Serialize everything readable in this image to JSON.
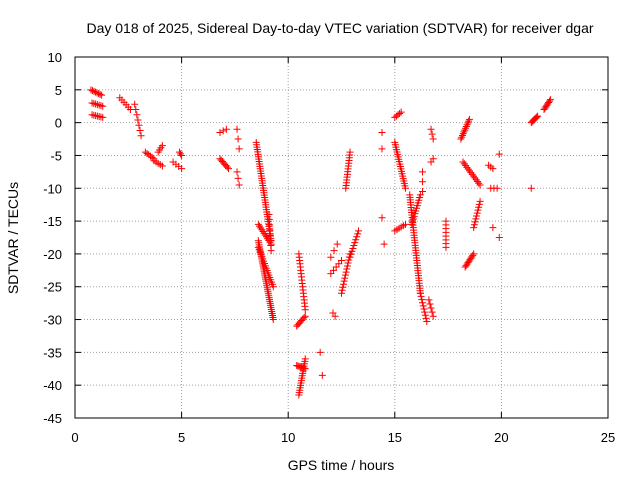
{
  "chart_data": {
    "type": "scatter",
    "title": "Day 018 of 2025, Sidereal Day-to-day VTEC variation (SDTVAR) for receiver dgar",
    "xlabel": "GPS time / hours",
    "ylabel": "SDTVAR / TECUs",
    "xlim": [
      0,
      25
    ],
    "ylim": [
      -45,
      10
    ],
    "xticks": [
      0,
      5,
      10,
      15,
      20,
      25
    ],
    "yticks": [
      10,
      5,
      0,
      -5,
      -10,
      -15,
      -20,
      -25,
      -30,
      -35,
      -40,
      -45
    ],
    "grid": true,
    "marker": "+",
    "marker_color": "#ff0000",
    "tracks": [
      {
        "from": [
          0.75,
          5.0
        ],
        "to": [
          1.25,
          4.2
        ],
        "n": 8
      },
      {
        "from": [
          0.8,
          3.0
        ],
        "to": [
          1.3,
          2.5
        ],
        "n": 7
      },
      {
        "from": [
          0.8,
          1.2
        ],
        "to": [
          1.3,
          0.8
        ],
        "n": 7
      },
      {
        "from": [
          2.1,
          3.8
        ],
        "to": [
          2.6,
          2.0
        ],
        "n": 6
      },
      {
        "from": [
          2.8,
          2.8
        ],
        "to": [
          3.1,
          -2.0
        ],
        "n": 7
      },
      {
        "from": [
          3.3,
          -4.5
        ],
        "to": [
          3.7,
          -5.5
        ],
        "n": 6
      },
      {
        "from": [
          3.7,
          -5.8
        ],
        "to": [
          4.1,
          -6.6
        ],
        "n": 5
      },
      {
        "from": [
          3.9,
          -4.5
        ],
        "to": [
          4.1,
          -3.5
        ],
        "n": 4
      },
      {
        "from": [
          4.6,
          -6.0
        ],
        "to": [
          5.0,
          -7.0
        ],
        "n": 4
      },
      {
        "from": [
          4.9,
          -4.5
        ],
        "to": [
          5.0,
          -5.0
        ],
        "n": 3
      },
      {
        "from": [
          6.8,
          -5.5
        ],
        "to": [
          7.2,
          -7.0
        ],
        "n": 8
      },
      {
        "from": [
          6.8,
          -1.5
        ],
        "to": [
          7.1,
          -1.0
        ],
        "n": 3
      },
      {
        "from": [
          7.6,
          -1.0
        ],
        "to": [
          7.7,
          -4.0
        ],
        "n": 3
      },
      {
        "from": [
          7.6,
          -7.5
        ],
        "to": [
          7.7,
          -9.5
        ],
        "n": 3
      },
      {
        "from": [
          8.5,
          -3.0
        ],
        "to": [
          9.2,
          -18.0
        ],
        "n": 42
      },
      {
        "from": [
          8.6,
          -15.5
        ],
        "to": [
          9.2,
          -18.5
        ],
        "n": 12
      },
      {
        "from": [
          8.6,
          -18.0
        ],
        "to": [
          9.3,
          -30.0
        ],
        "n": 40
      },
      {
        "from": [
          8.6,
          -19.0
        ],
        "to": [
          9.3,
          -25.0
        ],
        "n": 18
      },
      {
        "from": [
          9.1,
          -14.0
        ],
        "to": [
          9.2,
          -19.5
        ],
        "n": 8
      },
      {
        "from": [
          10.5,
          -20.0
        ],
        "to": [
          10.8,
          -28.5
        ],
        "n": 18
      },
      {
        "from": [
          10.4,
          -31.0
        ],
        "to": [
          10.8,
          -29.5
        ],
        "n": 8
      },
      {
        "from": [
          10.4,
          -37.0
        ],
        "to": [
          10.8,
          -37.5
        ],
        "n": 8
      },
      {
        "from": [
          10.5,
          -41.5
        ],
        "to": [
          10.8,
          -36.0
        ],
        "n": 16
      },
      {
        "from": [
          11.5,
          -35.0
        ],
        "to": [
          11.6,
          -38.5
        ],
        "n": 2
      },
      {
        "from": [
          12.0,
          -20.5
        ],
        "to": [
          12.3,
          -18.5
        ],
        "n": 3
      },
      {
        "from": [
          12.0,
          -23.0
        ],
        "to": [
          12.5,
          -21.0
        ],
        "n": 5
      },
      {
        "from": [
          12.1,
          -29.0
        ],
        "to": [
          12.2,
          -29.5
        ],
        "n": 2
      },
      {
        "from": [
          12.5,
          -26.0
        ],
        "to": [
          12.9,
          -20.0
        ],
        "n": 14
      },
      {
        "from": [
          12.7,
          -10.0
        ],
        "to": [
          12.9,
          -4.5
        ],
        "n": 14
      },
      {
        "from": [
          12.9,
          -20.5
        ],
        "to": [
          13.3,
          -16.5
        ],
        "n": 10
      },
      {
        "from": [
          14.4,
          -1.5
        ],
        "to": [
          14.4,
          -4.0
        ],
        "n": 2
      },
      {
        "from": [
          14.4,
          -14.5
        ],
        "to": [
          14.5,
          -18.5
        ],
        "n": 2
      },
      {
        "from": [
          15.0,
          0.8
        ],
        "to": [
          15.3,
          1.6
        ],
        "n": 5
      },
      {
        "from": [
          15.0,
          -3.0
        ],
        "to": [
          15.5,
          -10.0
        ],
        "n": 20
      },
      {
        "from": [
          15.0,
          -16.5
        ],
        "to": [
          15.5,
          -15.5
        ],
        "n": 6
      },
      {
        "from": [
          15.7,
          -11.0
        ],
        "to": [
          16.2,
          -26.0
        ],
        "n": 40
      },
      {
        "from": [
          15.8,
          -15.5
        ],
        "to": [
          16.2,
          -11.0
        ],
        "n": 12
      },
      {
        "from": [
          16.2,
          -26.0
        ],
        "to": [
          16.5,
          -30.3
        ],
        "n": 10
      },
      {
        "from": [
          16.6,
          -27.0
        ],
        "to": [
          16.8,
          -29.5
        ],
        "n": 5
      },
      {
        "from": [
          16.3,
          -7.5
        ],
        "to": [
          16.3,
          -10.5
        ],
        "n": 3
      },
      {
        "from": [
          16.7,
          -1.0
        ],
        "to": [
          16.8,
          -2.5
        ],
        "n": 3
      },
      {
        "from": [
          16.7,
          -6.0
        ],
        "to": [
          16.8,
          -5.5
        ],
        "n": 2
      },
      {
        "from": [
          17.4,
          -15.0
        ],
        "to": [
          17.4,
          -19.0
        ],
        "n": 8
      },
      {
        "from": [
          18.1,
          -2.5
        ],
        "to": [
          18.5,
          0.5
        ],
        "n": 12
      },
      {
        "from": [
          18.2,
          -6.0
        ],
        "to": [
          19.0,
          -9.5
        ],
        "n": 14
      },
      {
        "from": [
          18.3,
          -22.0
        ],
        "to": [
          18.7,
          -20.0
        ],
        "n": 10
      },
      {
        "from": [
          18.7,
          -16.0
        ],
        "to": [
          19.0,
          -12.0
        ],
        "n": 10
      },
      {
        "from": [
          19.4,
          -6.5
        ],
        "to": [
          19.6,
          -7.0
        ],
        "n": 3
      },
      {
        "from": [
          19.5,
          -10.0
        ],
        "to": [
          19.8,
          -10.0
        ],
        "n": 3
      },
      {
        "from": [
          19.6,
          -16.0
        ],
        "to": [
          19.9,
          -17.5
        ],
        "n": 2
      },
      {
        "from": [
          19.9,
          -4.8
        ],
        "to": [
          19.9,
          -4.8
        ],
        "n": 1
      },
      {
        "from": [
          21.4,
          0.0
        ],
        "to": [
          21.7,
          1.0
        ],
        "n": 8
      },
      {
        "from": [
          21.4,
          -10.0
        ],
        "to": [
          21.4,
          -10.0
        ],
        "n": 1
      },
      {
        "from": [
          22.0,
          2.0
        ],
        "to": [
          22.3,
          3.5
        ],
        "n": 8
      }
    ]
  }
}
